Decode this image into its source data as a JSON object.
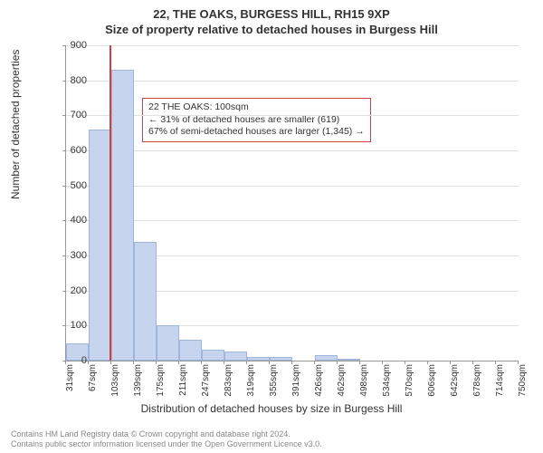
{
  "title_line1": "22, THE OAKS, BURGESS HILL, RH15 9XP",
  "title_line2": "Size of property relative to detached houses in Burgess Hill",
  "ylabel": "Number of detached properties",
  "xlabel": "Distribution of detached houses by size in Burgess Hill",
  "annotation": {
    "line1": "22 THE OAKS: 100sqm",
    "line2": "← 31% of detached houses are smaller (619)",
    "line3": "67% of semi-detached houses are larger (1,345) →"
  },
  "footer": {
    "line1": "Contains HM Land Registry data © Crown copyright and database right 2024.",
    "line2": "Contains public sector information licensed under the Open Government Licence v3.0."
  },
  "chart": {
    "type": "histogram",
    "ylim": [
      0,
      900
    ],
    "ytick_step": 100,
    "yticks": [
      0,
      100,
      200,
      300,
      400,
      500,
      600,
      700,
      800,
      900
    ],
    "x_tick_labels": [
      "31sqm",
      "67sqm",
      "103sqm",
      "139sqm",
      "175sqm",
      "211sqm",
      "247sqm",
      "283sqm",
      "319sqm",
      "355sqm",
      "391sqm",
      "426sqm",
      "462sqm",
      "498sqm",
      "534sqm",
      "570sqm",
      "606sqm",
      "642sqm",
      "678sqm",
      "714sqm",
      "750sqm"
    ],
    "bar_values": [
      50,
      660,
      830,
      340,
      100,
      60,
      30,
      25,
      10,
      10,
      0,
      15,
      3,
      0,
      0,
      0,
      0,
      0,
      0,
      0
    ],
    "bar_color": "#c7d4ee",
    "bar_border_color": "#9fb5da",
    "marker_color": "#d04040",
    "marker_x_value": 100,
    "x_domain": [
      31,
      750
    ],
    "background_color": "#ffffff",
    "grid_color": "#e0e0e0",
    "axis_color": "#999999",
    "title_fontsize": 13,
    "label_fontsize": 12,
    "tick_fontsize": 11
  }
}
